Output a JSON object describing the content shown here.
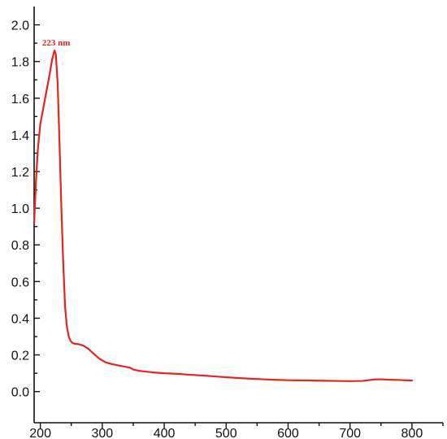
{
  "chart_data": {
    "type": "line",
    "title": "",
    "xlabel": "",
    "ylabel": "",
    "xlim": [
      190,
      850
    ],
    "ylim": [
      -0.17,
      2.1
    ],
    "x_ticks": [
      200,
      300,
      400,
      500,
      600,
      700,
      800
    ],
    "x_tick_labels": [
      "200",
      "300",
      "400",
      "500",
      "600",
      "700",
      "800"
    ],
    "y_ticks": [
      0.0,
      0.2,
      0.4,
      0.6,
      0.8,
      1.0,
      1.2,
      1.4,
      1.6,
      1.8,
      2.0
    ],
    "y_tick_labels": [
      "0.0",
      "0.2",
      "0.4",
      "0.6",
      "0.8",
      "1.0",
      "1.2",
      "1.4",
      "1.6",
      "1.8",
      "2.0"
    ],
    "grid": false,
    "legend": "none",
    "series": [
      {
        "color": "#e8231f",
        "x": [
          190,
          193,
          196,
          200,
          205,
          210,
          215,
          219,
          222,
          223,
          225,
          228,
          231,
          234,
          237,
          240,
          243,
          246,
          249,
          252,
          256,
          262,
          270,
          277,
          285,
          295,
          305,
          315,
          330,
          345,
          350,
          360,
          380,
          400,
          420,
          440,
          460,
          480,
          500,
          520,
          540,
          560,
          580,
          600,
          620,
          640,
          660,
          680,
          700,
          720,
          730,
          740,
          750,
          760,
          780,
          800
        ],
        "y": [
          0.92,
          1.15,
          1.32,
          1.46,
          1.55,
          1.64,
          1.73,
          1.81,
          1.85,
          1.86,
          1.84,
          1.68,
          1.35,
          1.0,
          0.7,
          0.46,
          0.35,
          0.3,
          0.275,
          0.265,
          0.26,
          0.258,
          0.25,
          0.235,
          0.21,
          0.18,
          0.16,
          0.15,
          0.14,
          0.13,
          0.12,
          0.113,
          0.105,
          0.1,
          0.097,
          0.092,
          0.088,
          0.083,
          0.078,
          0.074,
          0.07,
          0.067,
          0.064,
          0.062,
          0.061,
          0.06,
          0.059,
          0.058,
          0.057,
          0.058,
          0.062,
          0.066,
          0.067,
          0.065,
          0.063,
          0.06
        ]
      }
    ],
    "annotations": [
      {
        "text": "223 nm",
        "x": 223,
        "y": 1.86,
        "color": "#e8231f"
      }
    ]
  }
}
